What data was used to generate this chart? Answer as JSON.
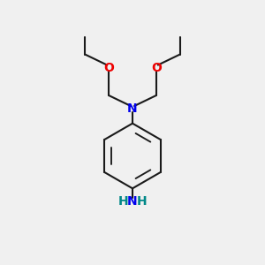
{
  "bg_color": "#f0f0f0",
  "bond_color": "#1a1a1a",
  "N_color": "#0000ee",
  "O_color": "#ee0000",
  "NH2_N_color": "#0000ee",
  "NH2_H_color": "#008888",
  "line_width": 1.5,
  "figsize": [
    3.0,
    3.0
  ],
  "dpi": 100,
  "xlim": [
    0,
    10
  ],
  "ylim": [
    0,
    10
  ]
}
